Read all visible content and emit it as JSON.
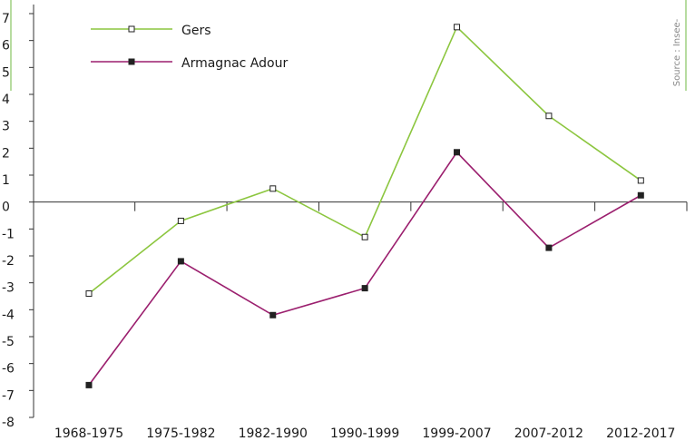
{
  "chart_data": {
    "type": "line",
    "categories": [
      "1968-1975",
      "1975-1982",
      "1982-1990",
      "1990-1999",
      "1999-2007",
      "2007-2012",
      "2012-2017"
    ],
    "series": [
      {
        "name": "Gers",
        "color": "#8cc63f",
        "marker": "open",
        "values": [
          -3.4,
          -0.7,
          0.5,
          -1.3,
          6.5,
          3.2,
          0.8
        ]
      },
      {
        "name": "Armagnac Adour",
        "color": "#9b1f6e",
        "marker": "filled",
        "values": [
          -6.8,
          -2.2,
          -4.2,
          -3.2,
          1.85,
          -1.7,
          0.25
        ]
      }
    ],
    "ylim": [
      -8,
      7
    ],
    "yticks": [
      -8,
      -7,
      -6,
      -5,
      -4,
      -3,
      -2,
      -1,
      0,
      1,
      2,
      3,
      4,
      5,
      6,
      7
    ],
    "source": "Source : Insee-"
  }
}
